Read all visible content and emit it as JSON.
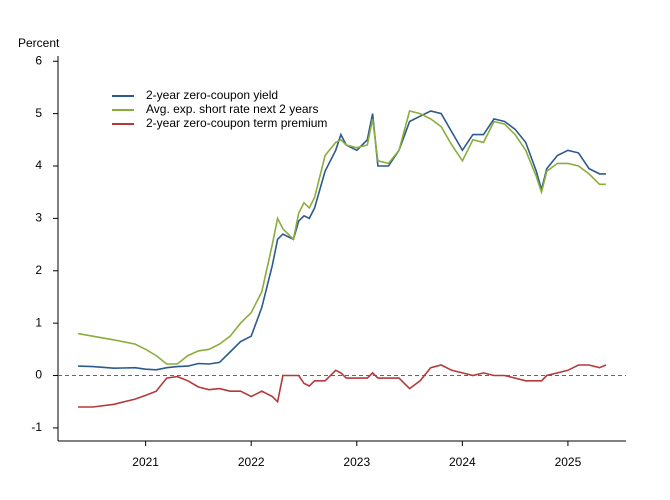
{
  "chart_data": {
    "type": "line",
    "y_label": "Percent",
    "x": [
      2020.36,
      2020.5,
      2020.7,
      2020.9,
      2021.0,
      2021.1,
      2021.2,
      2021.3,
      2021.4,
      2021.5,
      2021.6,
      2021.7,
      2021.8,
      2021.9,
      2022.0,
      2022.1,
      2022.2,
      2022.25,
      2022.3,
      2022.4,
      2022.45,
      2022.5,
      2022.55,
      2022.6,
      2022.7,
      2022.8,
      2022.85,
      2022.9,
      2023.0,
      2023.1,
      2023.15,
      2023.2,
      2023.3,
      2023.4,
      2023.5,
      2023.6,
      2023.7,
      2023.8,
      2023.9,
      2024.0,
      2024.1,
      2024.2,
      2024.3,
      2024.4,
      2024.5,
      2024.6,
      2024.7,
      2024.75,
      2024.8,
      2024.9,
      2025.0,
      2025.1,
      2025.2,
      2025.3,
      2025.36
    ],
    "series": [
      {
        "name": "2-year zero-coupon yield",
        "color": "#2d5a8c",
        "values": [
          0.18,
          0.17,
          0.14,
          0.15,
          0.12,
          0.11,
          0.15,
          0.17,
          0.18,
          0.23,
          0.22,
          0.25,
          0.45,
          0.65,
          0.75,
          1.3,
          2.1,
          2.6,
          2.7,
          2.6,
          2.95,
          3.05,
          3.0,
          3.2,
          3.9,
          4.3,
          4.6,
          4.4,
          4.3,
          4.5,
          5.0,
          4.0,
          4.0,
          4.3,
          4.85,
          4.95,
          5.05,
          5.0,
          4.65,
          4.3,
          4.6,
          4.6,
          4.9,
          4.85,
          4.7,
          4.45,
          3.9,
          3.55,
          3.95,
          4.2,
          4.3,
          4.25,
          3.95,
          3.85,
          3.85
        ]
      },
      {
        "name": "Avg. exp. short rate next 2 years",
        "color": "#8aad3b",
        "values": [
          0.8,
          0.75,
          0.68,
          0.6,
          0.5,
          0.38,
          0.22,
          0.22,
          0.38,
          0.47,
          0.5,
          0.6,
          0.75,
          1.0,
          1.2,
          1.6,
          2.5,
          3.0,
          2.8,
          2.6,
          3.1,
          3.3,
          3.2,
          3.4,
          4.2,
          4.45,
          4.5,
          4.4,
          4.35,
          4.4,
          4.9,
          4.1,
          4.05,
          4.3,
          5.05,
          5.0,
          4.9,
          4.75,
          4.4,
          4.1,
          4.5,
          4.45,
          4.85,
          4.8,
          4.6,
          4.3,
          3.8,
          3.5,
          3.9,
          4.05,
          4.05,
          4.0,
          3.85,
          3.65,
          3.65
        ]
      },
      {
        "name": "2-year zero-coupon term premium",
        "color": "#b5393b",
        "values": [
          -0.6,
          -0.6,
          -0.55,
          -0.45,
          -0.38,
          -0.3,
          -0.05,
          -0.02,
          -0.1,
          -0.22,
          -0.27,
          -0.25,
          -0.3,
          -0.3,
          -0.4,
          -0.3,
          -0.4,
          -0.5,
          0.0,
          0.0,
          0.0,
          -0.15,
          -0.2,
          -0.1,
          -0.1,
          0.1,
          0.05,
          -0.05,
          -0.05,
          -0.05,
          0.05,
          -0.05,
          -0.05,
          -0.05,
          -0.25,
          -0.1,
          0.15,
          0.2,
          0.1,
          0.05,
          0.0,
          0.05,
          0.0,
          0.0,
          -0.05,
          -0.1,
          -0.1,
          -0.1,
          0.0,
          0.05,
          0.1,
          0.2,
          0.2,
          0.15,
          0.2
        ]
      }
    ],
    "xlim": [
      2020.17,
      2025.55
    ],
    "xticks": [
      2021,
      2022,
      2023,
      2024,
      2025
    ],
    "ylim": [
      -1.25,
      6.1
    ],
    "yticks": [
      -1,
      0,
      1,
      2,
      3,
      4,
      5,
      6
    ],
    "reference_line": 0,
    "legend": "upper left"
  }
}
